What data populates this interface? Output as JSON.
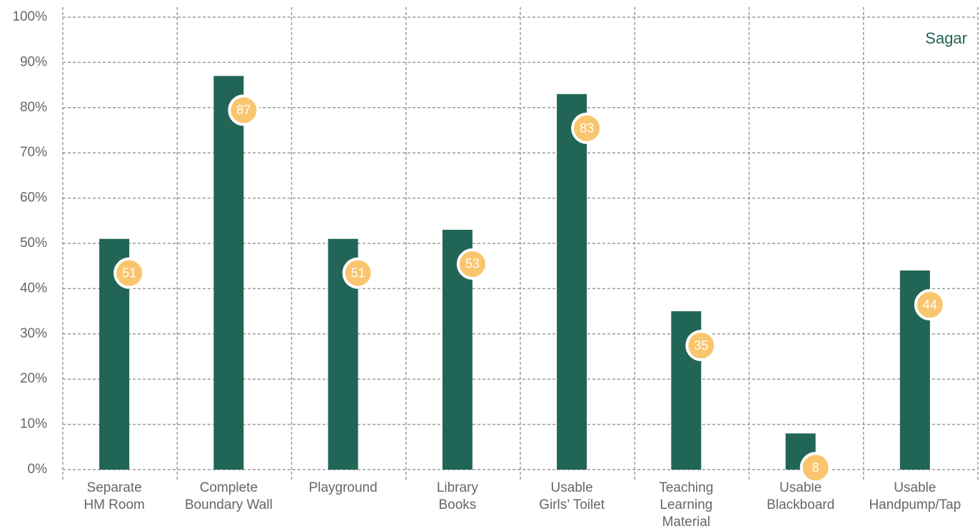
{
  "chart_data": {
    "type": "bar",
    "categories": [
      [
        "Separate",
        "HM Room"
      ],
      [
        "Complete",
        "Boundary Wall"
      ],
      [
        "Playground"
      ],
      [
        "Library",
        "Books"
      ],
      [
        "Usable",
        "Girls’ Toilet"
      ],
      [
        "Teaching",
        "Learning",
        "Material"
      ],
      [
        "Usable",
        "Blackboard"
      ],
      [
        "Usable",
        "Handpump/Tap"
      ]
    ],
    "series": [
      {
        "name": "Sagar",
        "color": "#216557",
        "values": [
          51,
          87,
          51,
          53,
          83,
          35,
          8,
          44
        ]
      }
    ],
    "ylim": [
      0,
      100
    ],
    "yticks": [
      {
        "value": 0,
        "label": "0%"
      },
      {
        "value": 10,
        "label": "10%"
      },
      {
        "value": 20,
        "label": "20%"
      },
      {
        "value": 30,
        "label": "30%"
      },
      {
        "value": 40,
        "label": "40%"
      },
      {
        "value": 50,
        "label": "50%"
      },
      {
        "value": 60,
        "label": "60%"
      },
      {
        "value": 70,
        "label": "70%"
      },
      {
        "value": 80,
        "label": "80%"
      },
      {
        "value": 90,
        "label": "90%"
      },
      {
        "value": 100,
        "label": "100%"
      }
    ],
    "grid": true,
    "legend": "top-right",
    "label_color": "#f9c56e"
  }
}
